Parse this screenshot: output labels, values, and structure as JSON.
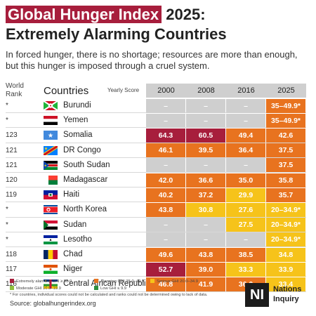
{
  "title": {
    "highlight": "Global Hunger Index",
    "rest": "2025:",
    "line2": "Extremely Alarming Countries"
  },
  "subtitle": "In forced hunger, there is no shortage; resources are more than enough, but this hunger is imposed through a cruel system.",
  "colors": {
    "extremely_alarming": "#a71e3c",
    "alarming": "#e8731f",
    "serious": "#f6c31a",
    "no_data": "#cfcfcf",
    "moderate": "#8fbf3c",
    "low": "#2e8f3e",
    "title_highlight": "#a71e3c"
  },
  "chart_data": {
    "type": "table",
    "header_rank": "World Rank",
    "header_countries": "Countries",
    "header_yearly": "Yearly Score",
    "years": [
      "2000",
      "2008",
      "2016",
      "2025"
    ],
    "rows": [
      {
        "rank": "*",
        "country": "Burundi",
        "flag": "burundi-flag",
        "scores": [
          "–",
          "–",
          "–",
          "35–49.9*"
        ],
        "levels": [
          "na",
          "na",
          "na",
          "alarming"
        ]
      },
      {
        "rank": "*",
        "country": "Yemen",
        "flag": "yemen-flag",
        "scores": [
          "–",
          "–",
          "–",
          "35–49.9*"
        ],
        "levels": [
          "na",
          "na",
          "na",
          "alarming"
        ]
      },
      {
        "rank": "123",
        "country": "Somalia",
        "flag": "somalia-flag",
        "scores": [
          "64.3",
          "60.5",
          "49.4",
          "42.6"
        ],
        "levels": [
          "extreme",
          "extreme",
          "alarming",
          "alarming"
        ]
      },
      {
        "rank": "121",
        "country": "DR Congo",
        "flag": "dr-congo-flag",
        "scores": [
          "46.1",
          "39.5",
          "36.4",
          "37.5"
        ],
        "levels": [
          "alarming",
          "alarming",
          "alarming",
          "alarming"
        ]
      },
      {
        "rank": "121",
        "country": "South Sudan",
        "flag": "south-sudan-flag",
        "scores": [
          "–",
          "–",
          "–",
          "37.5"
        ],
        "levels": [
          "na",
          "na",
          "na",
          "alarming"
        ]
      },
      {
        "rank": "120",
        "country": "Madagascar",
        "flag": "madagascar-flag",
        "scores": [
          "42.0",
          "36.6",
          "35.0",
          "35.8"
        ],
        "levels": [
          "alarming",
          "alarming",
          "alarming",
          "alarming"
        ]
      },
      {
        "rank": "119",
        "country": "Haiti",
        "flag": "haiti-flag",
        "scores": [
          "40.2",
          "37.2",
          "29.9",
          "35.7"
        ],
        "levels": [
          "alarming",
          "alarming",
          "serious",
          "alarming"
        ]
      },
      {
        "rank": "*",
        "country": "North Korea",
        "flag": "north-korea-flag",
        "scores": [
          "43.8",
          "30.8",
          "27.6",
          "20–34.9*"
        ],
        "levels": [
          "alarming",
          "serious",
          "serious",
          "serious"
        ]
      },
      {
        "rank": "*",
        "country": "Sudan",
        "flag": "sudan-flag",
        "scores": [
          "–",
          "–",
          "27.5",
          "20–34.9*"
        ],
        "levels": [
          "na",
          "na",
          "serious",
          "serious"
        ]
      },
      {
        "rank": "*",
        "country": "Lesotho",
        "flag": "lesotho-flag",
        "scores": [
          "–",
          "–",
          "–",
          "20–34.9*"
        ],
        "levels": [
          "na",
          "na",
          "na",
          "serious"
        ]
      },
      {
        "rank": "118",
        "country": "Chad",
        "flag": "chad-flag",
        "scores": [
          "49.6",
          "43.8",
          "38.5",
          "34.8"
        ],
        "levels": [
          "alarming",
          "alarming",
          "alarming",
          "serious"
        ]
      },
      {
        "rank": "117",
        "country": "Niger",
        "flag": "niger-flag",
        "scores": [
          "52.7",
          "39.0",
          "33.3",
          "33.9"
        ],
        "levels": [
          "extreme",
          "alarming",
          "serious",
          "serious"
        ]
      },
      {
        "rank": "116",
        "country": "Central African Republic",
        "flag": "car-flag",
        "scores": [
          "46.8",
          "41.9",
          "36.0",
          "33.4"
        ],
        "levels": [
          "alarming",
          "alarming",
          "alarming",
          "serious"
        ]
      }
    ]
  },
  "legend": {
    "items": [
      {
        "label": "Extremely alarming GHI ≥ 50.0",
        "level": "extreme"
      },
      {
        "label": "Alarming GHI 35.0–49.9",
        "level": "alarming"
      },
      {
        "label": "Serious GHI 20.0–34.9",
        "level": "serious"
      },
      {
        "label": "Moderate GHI 10.0–19.9",
        "level": "moderate"
      },
      {
        "label": "Low GHI ≤ 9.9",
        "level": "low"
      }
    ]
  },
  "footnote": "* For countries, individual scores could not be calculated and ranks could not be determined owing to lack of data.",
  "source": "Source: globalhungerindex.org",
  "logo": {
    "mark": "NI",
    "line1": "Nations",
    "line2": "Inquiry"
  }
}
